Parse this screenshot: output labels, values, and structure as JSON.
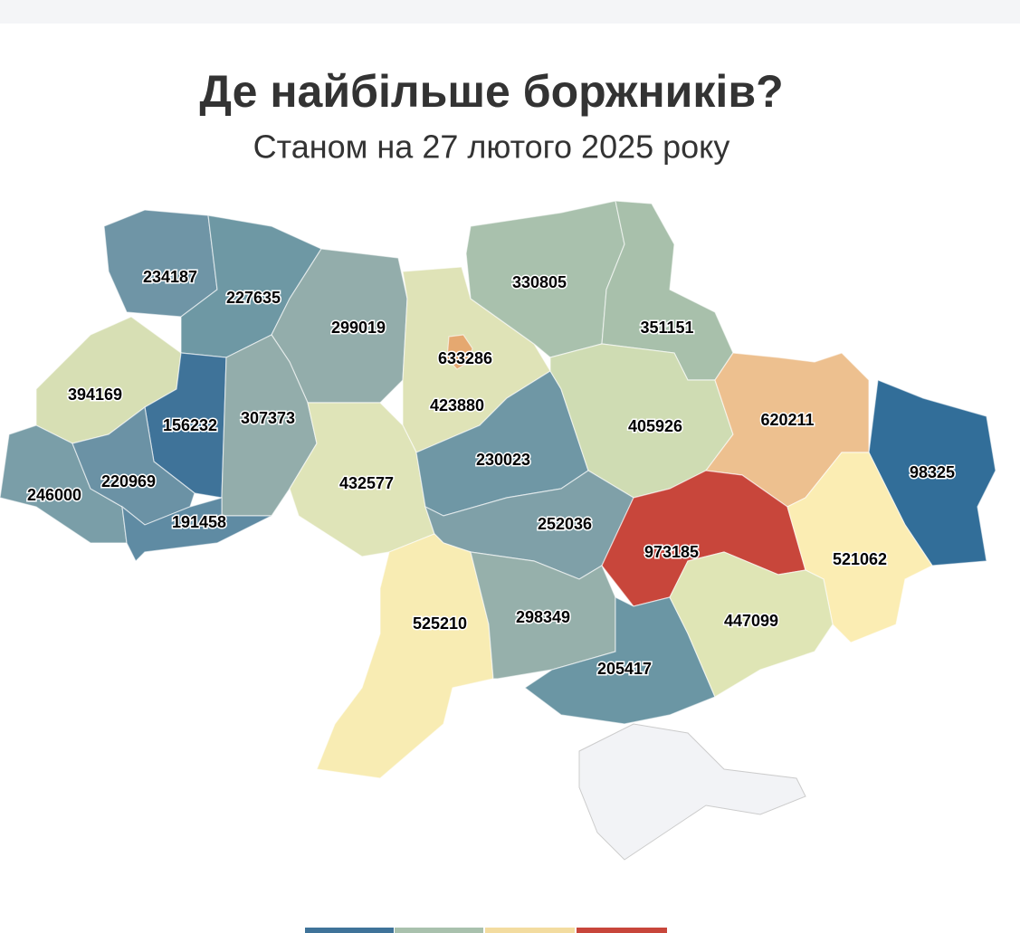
{
  "chart_data": {
    "type": "choropleth",
    "title": "Де найбільше боржників?",
    "subtitle": "Станом на 27 лютого 2025 року",
    "values": [
      234187,
      227635,
      299019,
      633286,
      423880,
      330805,
      351151,
      394169,
      156232,
      307373,
      246000,
      220969,
      191458,
      432577,
      230023,
      405926,
      620211,
      98325,
      252036,
      973185,
      521062,
      525210,
      298349,
      205417,
      447099
    ],
    "colors": [
      "#6f95a6",
      "#6e98a4",
      "#93adab",
      "#e5a870",
      "#dfe3b7",
      "#a9c1ad",
      "#a8c0ab",
      "#d7dfb4",
      "#3f7399",
      "#93adab",
      "#7a9ea8",
      "#6b92a5",
      "#5f8ba3",
      "#dfe4b8",
      "#6f97a5",
      "#cfdcb3",
      "#edc08f",
      "#326e99",
      "#7fa0a8",
      "#c8463b",
      "#fbedb3",
      "#f8ecb3",
      "#96b0ab",
      "#6b96a4",
      "#dfe5b5"
    ]
  }
}
